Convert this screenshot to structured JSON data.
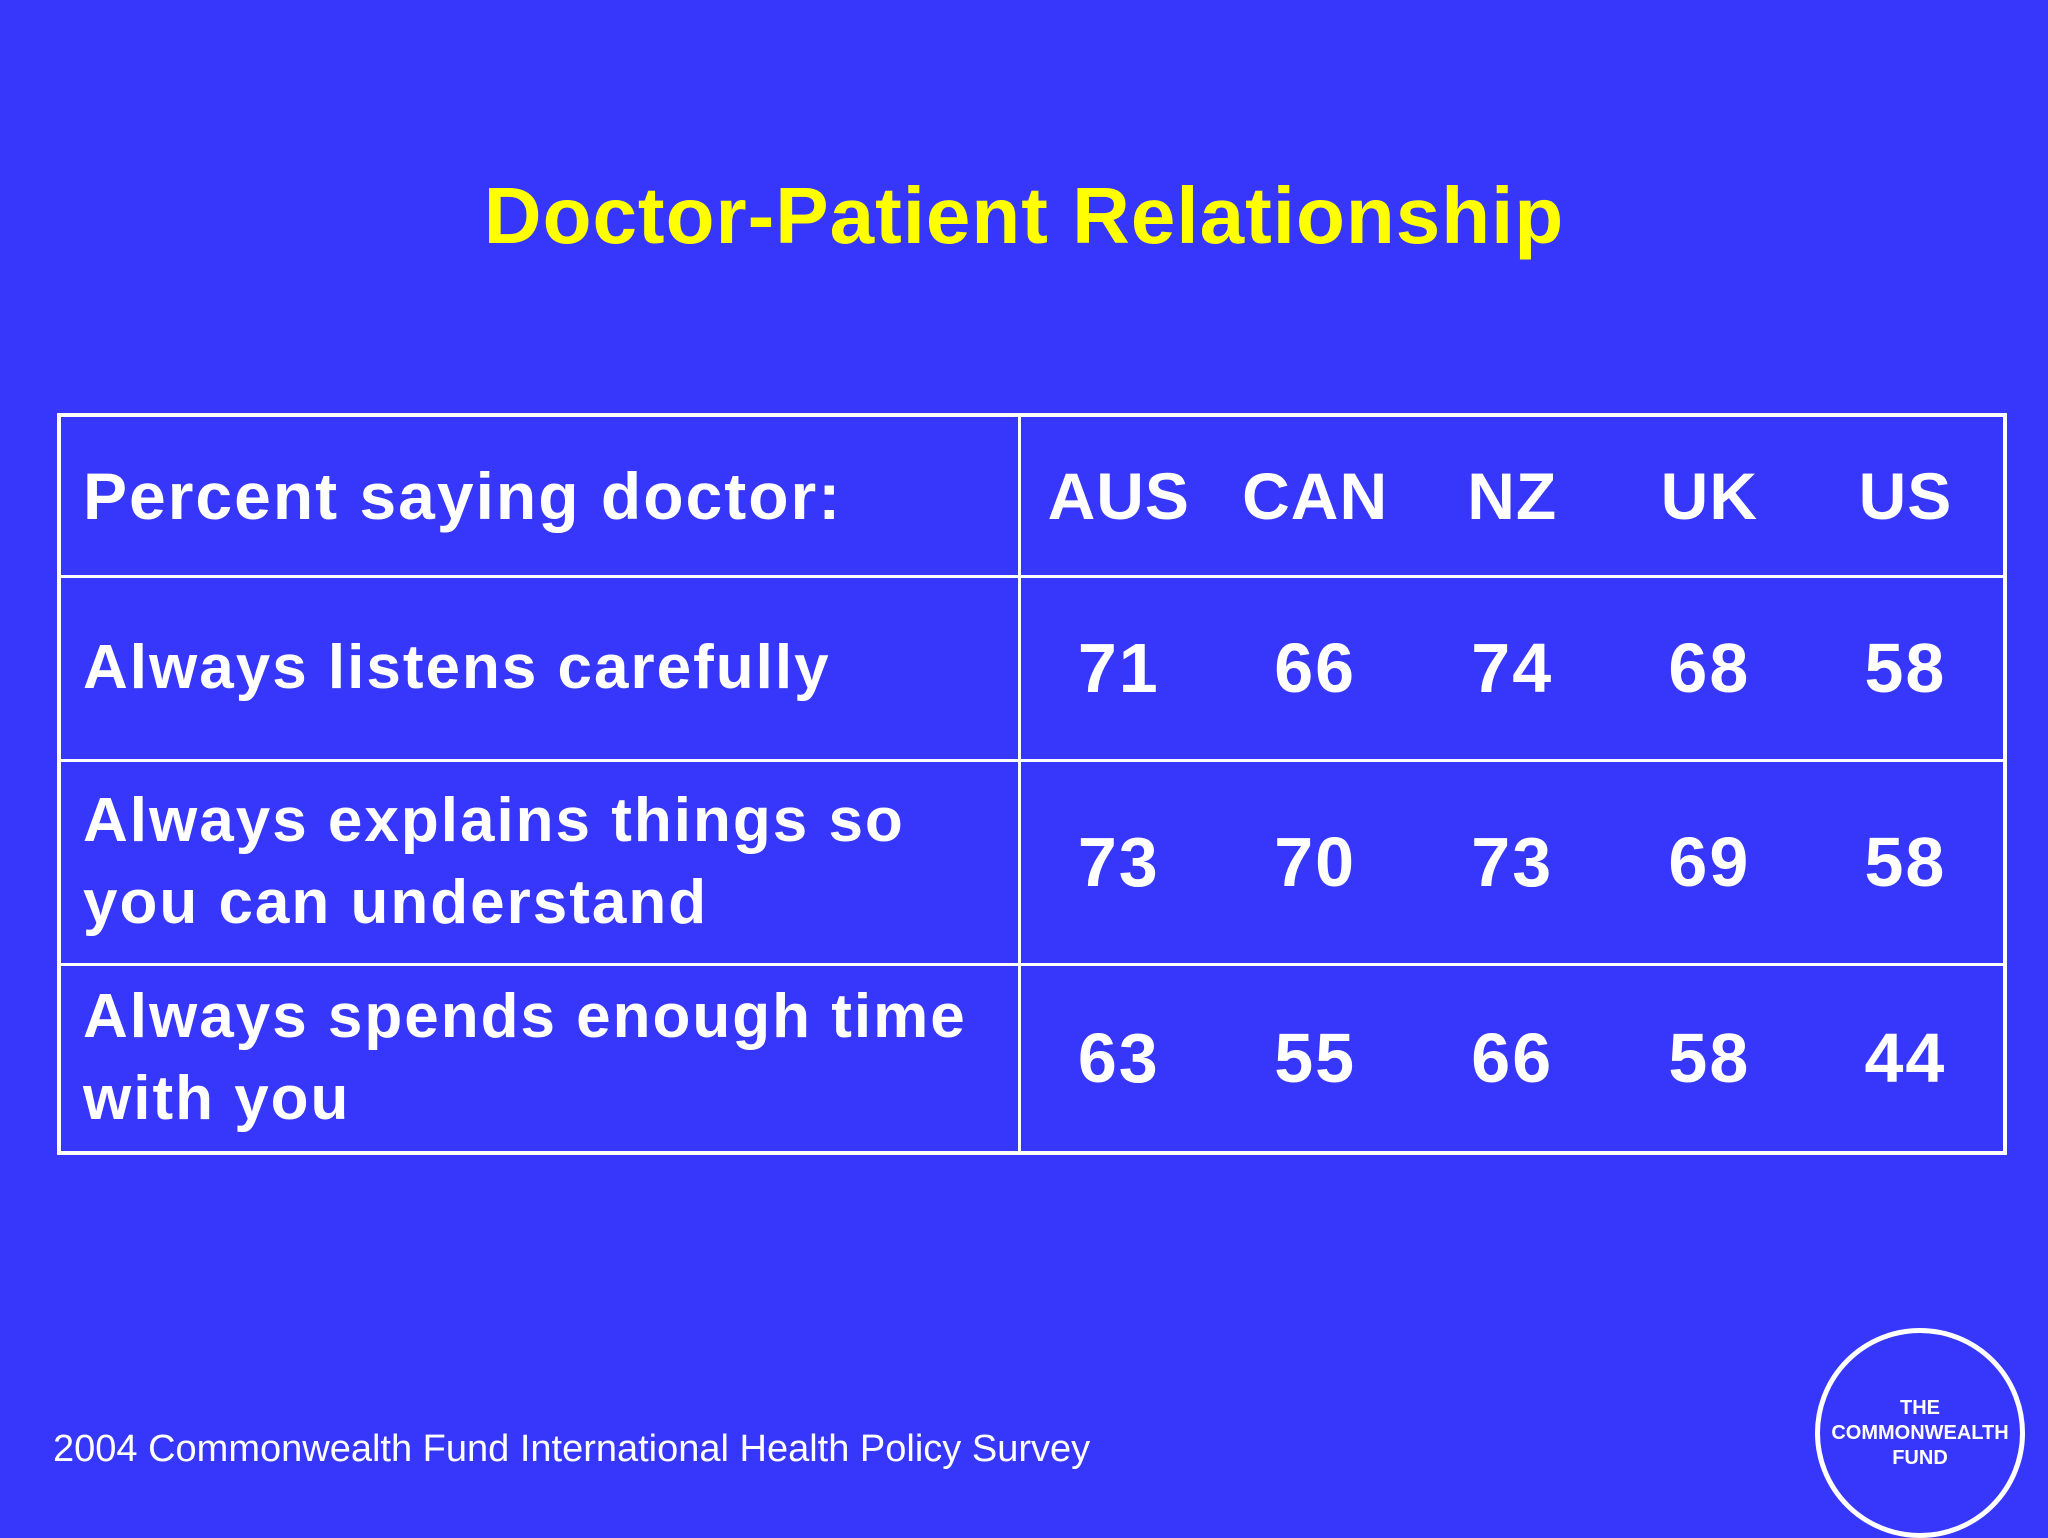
{
  "title": "Doctor-Patient Relationship",
  "chart_data": {
    "type": "table",
    "title": "Doctor-Patient Relationship",
    "header_label": "Percent saying doctor:",
    "columns": [
      "AUS",
      "CAN",
      "NZ",
      "UK",
      "US"
    ],
    "rows": [
      {
        "label": "Always listens carefully",
        "values": [
          71,
          66,
          74,
          68,
          58
        ]
      },
      {
        "label": "Always explains things so you can understand",
        "values": [
          73,
          70,
          73,
          69,
          58
        ]
      },
      {
        "label": "Always spends enough time with you",
        "values": [
          63,
          55,
          66,
          58,
          44
        ]
      }
    ]
  },
  "source": "2004 Commonwealth Fund International Health Policy Survey",
  "logo_text": "THE\nCOMMONWEALTH\nFUND",
  "colors": {
    "background": "#3737fb",
    "title": "#ffff00",
    "text": "#ffffff"
  }
}
